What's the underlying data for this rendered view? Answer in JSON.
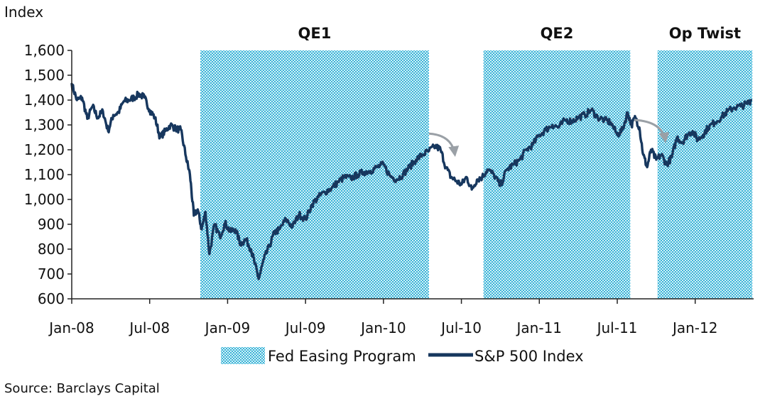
{
  "chart_data": {
    "type": "line",
    "title": "",
    "ylabel": "Index",
    "xlabel": "",
    "ylim": [
      600,
      1600
    ],
    "yticks": [
      600,
      700,
      800,
      900,
      1000,
      1100,
      1200,
      1300,
      1400,
      1500,
      1600
    ],
    "ytick_labels": [
      "600",
      "700",
      "800",
      "900",
      "1,000",
      "1,100",
      "1,200",
      "1,300",
      "1,400",
      "1,500",
      "1,600"
    ],
    "xlim": [
      0,
      52.5
    ],
    "xticks": [
      0,
      6,
      12,
      18,
      24,
      30,
      36,
      42,
      48
    ],
    "xtick_labels": [
      "Jan-08",
      "Jul-08",
      "Jan-09",
      "Jul-09",
      "Jan-10",
      "Jul-10",
      "Jan-11",
      "Jul-11",
      "Jan-12"
    ],
    "x_units": "months since Jan-2008",
    "programs": [
      {
        "label": "QE1",
        "start": 9.9,
        "end": 27.5
      },
      {
        "label": "QE2",
        "start": 31.7,
        "end": 43.0
      },
      {
        "label": "Op Twist",
        "start": 45.1,
        "end": 52.4
      }
    ],
    "series": [
      {
        "name": "S&P 500 Index",
        "color": "#17375e",
        "x": [
          0,
          0.4,
          0.8,
          1.2,
          1.6,
          2.0,
          2.4,
          2.8,
          3.2,
          3.6,
          4.0,
          4.4,
          4.8,
          5.2,
          5.6,
          6.0,
          6.4,
          6.8,
          7.2,
          7.6,
          8.0,
          8.4,
          8.8,
          9.1,
          9.4,
          9.7,
          10.0,
          10.3,
          10.6,
          11.0,
          11.4,
          11.8,
          12.2,
          12.6,
          13.0,
          13.4,
          13.8,
          14.1,
          14.4,
          14.8,
          15.2,
          15.6,
          16.0,
          16.5,
          17.0,
          17.5,
          18.0,
          18.5,
          19.0,
          19.5,
          20.0,
          20.5,
          21.0,
          21.5,
          22.0,
          22.5,
          23.0,
          23.5,
          24.0,
          24.5,
          25.0,
          25.5,
          26.0,
          26.5,
          27.0,
          27.5,
          28.0,
          28.4,
          28.8,
          29.2,
          29.6,
          30.0,
          30.4,
          30.8,
          31.2,
          31.6,
          32.0,
          32.5,
          33.0,
          33.5,
          34.0,
          34.5,
          35.0,
          35.5,
          36.0,
          36.5,
          37.0,
          37.5,
          38.0,
          38.5,
          39.0,
          39.5,
          40.0,
          40.5,
          41.0,
          41.5,
          42.0,
          42.4,
          42.8,
          43.1,
          43.4,
          43.7,
          44.0,
          44.3,
          44.6,
          45.0,
          45.4,
          45.8,
          46.2,
          46.6,
          47.0,
          47.4,
          47.8,
          48.2,
          48.6,
          49.0,
          49.5,
          50.0,
          50.5,
          51.0,
          51.5,
          52.0,
          52.3
        ],
        "values": [
          1465,
          1400,
          1410,
          1325,
          1375,
          1330,
          1355,
          1275,
          1340,
          1350,
          1395,
          1400,
          1410,
          1425,
          1410,
          1360,
          1330,
          1250,
          1275,
          1300,
          1285,
          1280,
          1170,
          1100,
          935,
          960,
          880,
          950,
          780,
          900,
          850,
          905,
          870,
          880,
          820,
          840,
          800,
          740,
          680,
          760,
          810,
          865,
          880,
          920,
          890,
          940,
          920,
          980,
          1010,
          1030,
          1045,
          1070,
          1090,
          1085,
          1100,
          1110,
          1115,
          1130,
          1140,
          1095,
          1080,
          1100,
          1130,
          1160,
          1180,
          1195,
          1215,
          1200,
          1130,
          1090,
          1075,
          1060,
          1090,
          1040,
          1080,
          1090,
          1120,
          1100,
          1055,
          1120,
          1140,
          1160,
          1200,
          1220,
          1260,
          1280,
          1300,
          1290,
          1320,
          1315,
          1330,
          1340,
          1360,
          1330,
          1320,
          1310,
          1260,
          1280,
          1350,
          1300,
          1330,
          1290,
          1180,
          1130,
          1200,
          1160,
          1180,
          1140,
          1170,
          1250,
          1230,
          1260,
          1275,
          1240,
          1260,
          1290,
          1310,
          1330,
          1355,
          1370,
          1375,
          1385,
          1400
        ]
      }
    ],
    "legend": [
      {
        "label": "Fed Easing Program",
        "kind": "pattern"
      },
      {
        "label": "S&P 500 Index",
        "kind": "line"
      }
    ],
    "annotations": [
      {
        "type": "arrow",
        "from_x": 27.5,
        "from_y": 1265,
        "to_x": 29.5,
        "to_y": 1180
      },
      {
        "type": "arrow",
        "from_x": 43.3,
        "from_y": 1320,
        "to_x": 45.7,
        "to_y": 1235
      }
    ]
  },
  "source": "Source: Barclays Capital",
  "colors": {
    "line": "#17375e",
    "shade_light": "#d4f0f7",
    "shade_dark": "#3cb4d8",
    "arrow": "#9aa0a6",
    "axis": "#222222"
  }
}
